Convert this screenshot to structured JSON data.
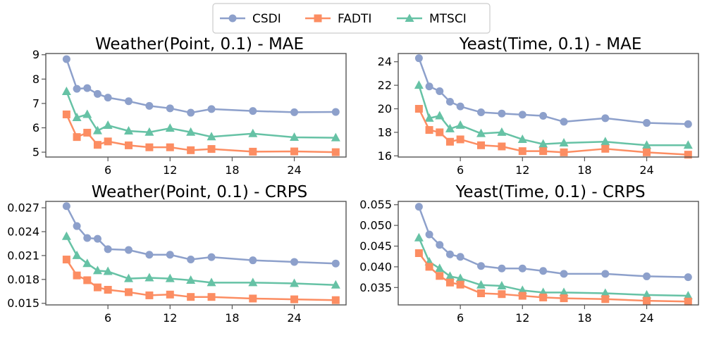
{
  "legend": {
    "entries": [
      {
        "name": "CSDI",
        "color": "#8da0cb",
        "marker": "circle"
      },
      {
        "name": "FADTI",
        "color": "#fc8d62",
        "marker": "square"
      },
      {
        "name": "MTSCI",
        "color": "#66c2a5",
        "marker": "triangle"
      }
    ]
  },
  "chart_data": [
    {
      "type": "line",
      "title": "Weather(Point, 0.1) - MAE",
      "x": [
        2,
        3,
        4,
        5,
        6,
        8,
        10,
        12,
        14,
        16,
        20,
        24,
        28
      ],
      "xlim": [
        0,
        29
      ],
      "xticks": [
        6,
        12,
        18,
        24
      ],
      "xtick_labels": [
        "6",
        "12",
        "18",
        "24"
      ],
      "ylim": [
        4.8,
        9.05
      ],
      "yticks": [
        5,
        6,
        7,
        8,
        9
      ],
      "ytick_labels": [
        "5",
        "6",
        "7",
        "8",
        "9"
      ],
      "series": [
        {
          "name": "CSDI",
          "values": [
            8.82,
            7.6,
            7.63,
            7.39,
            7.24,
            7.09,
            6.9,
            6.8,
            6.62,
            6.77,
            6.69,
            6.64,
            6.65
          ]
        },
        {
          "name": "FADTI",
          "values": [
            6.55,
            5.62,
            5.8,
            5.3,
            5.44,
            5.28,
            5.2,
            5.2,
            5.08,
            5.13,
            5.02,
            5.03,
            5.0
          ]
        },
        {
          "name": "MTSCI",
          "values": [
            7.49,
            6.42,
            6.55,
            5.88,
            6.1,
            5.87,
            5.82,
            5.98,
            5.82,
            5.63,
            5.76,
            5.61,
            5.59
          ]
        }
      ]
    },
    {
      "type": "line",
      "title": "Yeast(Time, 0.1) - MAE",
      "x": [
        2,
        3,
        4,
        5,
        6,
        8,
        10,
        12,
        14,
        16,
        20,
        24,
        28
      ],
      "xlim": [
        0,
        29
      ],
      "xticks": [
        6,
        12,
        18,
        24
      ],
      "xtick_labels": [
        "6",
        "12",
        "18",
        "24"
      ],
      "ylim": [
        15.9,
        24.7
      ],
      "yticks": [
        16,
        18,
        20,
        22,
        24
      ],
      "ytick_labels": [
        "16",
        "18",
        "20",
        "22",
        "24"
      ],
      "series": [
        {
          "name": "CSDI",
          "values": [
            24.3,
            21.9,
            21.5,
            20.6,
            20.2,
            19.7,
            19.6,
            19.5,
            19.4,
            18.9,
            19.2,
            18.8,
            18.7
          ]
        },
        {
          "name": "FADTI",
          "values": [
            20.0,
            18.2,
            18.0,
            17.2,
            17.4,
            16.9,
            16.8,
            16.4,
            16.4,
            16.3,
            16.6,
            16.3,
            16.1
          ]
        },
        {
          "name": "MTSCI",
          "values": [
            22.0,
            19.2,
            19.4,
            18.3,
            18.6,
            17.9,
            18.0,
            17.4,
            17.0,
            17.1,
            17.2,
            16.9,
            16.9
          ]
        }
      ]
    },
    {
      "type": "line",
      "title": "Weather(Point, 0.1) - CRPS",
      "x": [
        2,
        3,
        4,
        5,
        6,
        8,
        10,
        12,
        14,
        16,
        20,
        24,
        28
      ],
      "xlim": [
        0,
        29
      ],
      "xticks": [
        6,
        12,
        18,
        24
      ],
      "xtick_labels": [
        "6",
        "12",
        "18",
        "24"
      ],
      "ylim": [
        0.0148,
        0.0278
      ],
      "yticks": [
        0.015,
        0.018,
        0.021,
        0.024,
        0.027
      ],
      "ytick_labels": [
        "0.015",
        "0.018",
        "0.021",
        "0.024",
        "0.027"
      ],
      "series": [
        {
          "name": "CSDI",
          "values": [
            0.0272,
            0.0247,
            0.0232,
            0.0231,
            0.0218,
            0.0217,
            0.0211,
            0.0211,
            0.0205,
            0.0208,
            0.0204,
            0.0202,
            0.02
          ]
        },
        {
          "name": "FADTI",
          "values": [
            0.0205,
            0.0185,
            0.0179,
            0.017,
            0.0167,
            0.0164,
            0.016,
            0.0161,
            0.0158,
            0.0158,
            0.0156,
            0.0155,
            0.0154
          ]
        },
        {
          "name": "MTSCI",
          "values": [
            0.0234,
            0.021,
            0.02,
            0.0191,
            0.019,
            0.0181,
            0.0182,
            0.0181,
            0.0179,
            0.0176,
            0.0176,
            0.0175,
            0.0173
          ]
        }
      ]
    },
    {
      "type": "line",
      "title": "Yeast(Time, 0.1) - CRPS",
      "x": [
        2,
        3,
        4,
        5,
        6,
        8,
        10,
        12,
        14,
        16,
        20,
        24,
        28
      ],
      "xlim": [
        0,
        29
      ],
      "xticks": [
        6,
        12,
        18,
        24
      ],
      "xtick_labels": [
        "6",
        "12",
        "18",
        "24"
      ],
      "ylim": [
        0.0308,
        0.0558
      ],
      "yticks": [
        0.035,
        0.04,
        0.045,
        0.05,
        0.055
      ],
      "ytick_labels": [
        "0.035",
        "0.040",
        "0.045",
        "0.050",
        "0.055"
      ],
      "series": [
        {
          "name": "CSDI",
          "values": [
            0.0545,
            0.0478,
            0.0453,
            0.043,
            0.0424,
            0.0402,
            0.0396,
            0.0396,
            0.039,
            0.0383,
            0.0383,
            0.0377,
            0.0375
          ]
        },
        {
          "name": "FADTI",
          "values": [
            0.0433,
            0.04,
            0.0378,
            0.0362,
            0.0357,
            0.0336,
            0.0334,
            0.033,
            0.0326,
            0.0324,
            0.0322,
            0.0318,
            0.0316
          ]
        },
        {
          "name": "MTSCI",
          "values": [
            0.047,
            0.0412,
            0.0396,
            0.0377,
            0.0372,
            0.0356,
            0.0354,
            0.0343,
            0.0338,
            0.0338,
            0.0336,
            0.0332,
            0.033
          ]
        }
      ]
    }
  ]
}
